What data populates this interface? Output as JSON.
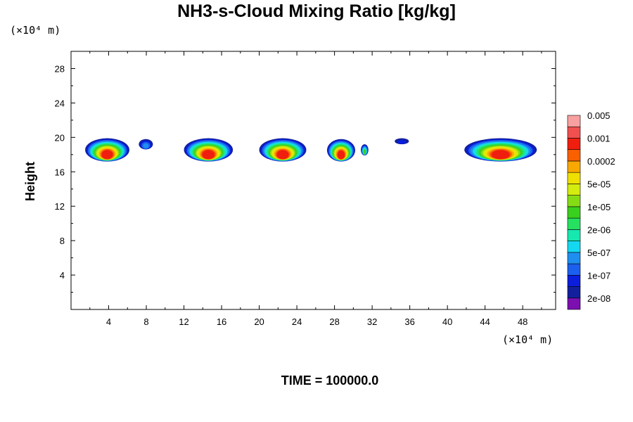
{
  "chart_data": {
    "type": "heatmap",
    "title": "NH3-s-Cloud Mixing Ratio [kg/kg]",
    "ylabel": "Height",
    "xunit": "(×10⁴ m)",
    "yunit": "(×10⁴ m)",
    "footer": "TIME = 100000.0",
    "xlim": [
      0,
      51.5
    ],
    "ylim": [
      0,
      30
    ],
    "xticks": [
      4,
      8,
      12,
      16,
      20,
      24,
      28,
      32,
      36,
      40,
      44,
      48
    ],
    "yticks": [
      4,
      8,
      12,
      16,
      20,
      24,
      28
    ],
    "colorbar": {
      "colors": [
        "#7b0fb0",
        "#12209e",
        "#0a1edc",
        "#1b5fef",
        "#1e8ef0",
        "#13d8f0",
        "#17e8b0",
        "#26e060",
        "#3ad01e",
        "#86dc14",
        "#d4ec10",
        "#f0e000",
        "#f8a800",
        "#f86000",
        "#f01e0e",
        "#f05050",
        "#f8a0a0"
      ],
      "labels": [
        "2e-08",
        "1e-07",
        "5e-07",
        "2e-06",
        "1e-05",
        "5e-05",
        "0.0002",
        "0.001",
        "0.005"
      ]
    },
    "cloud_regions": [
      {
        "x_start": 1.5,
        "x_end": 6.2,
        "y_base": 17.2,
        "y_top": 19.9,
        "core_max": "0.0002"
      },
      {
        "x_start": 7.2,
        "x_end": 8.7,
        "y_base": 18.6,
        "y_top": 19.8,
        "core_max": "1e-07"
      },
      {
        "x_start": 12.0,
        "x_end": 17.2,
        "y_base": 17.2,
        "y_top": 19.9,
        "core_max": "0.0002"
      },
      {
        "x_start": 20.0,
        "x_end": 25.0,
        "y_base": 17.2,
        "y_top": 19.9,
        "core_max": "0.0002"
      },
      {
        "x_start": 27.2,
        "x_end": 30.2,
        "y_base": 17.2,
        "y_top": 19.8,
        "core_max": "0.0002"
      },
      {
        "x_start": 30.8,
        "x_end": 31.6,
        "y_base": 17.9,
        "y_top": 19.2,
        "core_max": "2e-06"
      },
      {
        "x_start": 34.4,
        "x_end": 35.9,
        "y_base": 19.2,
        "y_top": 19.9,
        "core_max": "2e-08"
      },
      {
        "x_start": 41.8,
        "x_end": 49.5,
        "y_base": 17.2,
        "y_top": 19.9,
        "core_max": "0.0002"
      }
    ]
  }
}
